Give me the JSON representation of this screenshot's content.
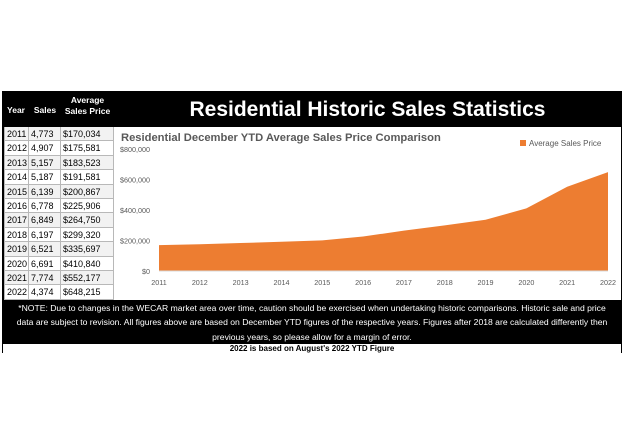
{
  "title": "Residential Historic Sales Statistics",
  "table": {
    "headers": {
      "year": "Year",
      "sales": "Sales",
      "price_line1": "Average",
      "price_line2": "Sales Price"
    },
    "rows": [
      {
        "year": "2011",
        "sales": "4,773",
        "price": "$170,034"
      },
      {
        "year": "2012",
        "sales": "4,907",
        "price": "$175,581"
      },
      {
        "year": "2013",
        "sales": "5,157",
        "price": "$183,523"
      },
      {
        "year": "2014",
        "sales": "5,187",
        "price": "$191,581"
      },
      {
        "year": "2015",
        "sales": "6,139",
        "price": "$200,867"
      },
      {
        "year": "2016",
        "sales": "6,778",
        "price": "$225,906"
      },
      {
        "year": "2017",
        "sales": "6,849",
        "price": "$264,750"
      },
      {
        "year": "2018",
        "sales": "6,197",
        "price": "$299,320"
      },
      {
        "year": "2019",
        "sales": "6,521",
        "price": "$335,697"
      },
      {
        "year": "2020",
        "sales": "6,691",
        "price": "$410,840"
      },
      {
        "year": "2021",
        "sales": "7,774",
        "price": "$552,177"
      },
      {
        "year": "2022",
        "sales": "4,374",
        "price": "$648,215"
      }
    ]
  },
  "chart_data": {
    "type": "area",
    "title": "Residential December YTD Average Sales Price Comparison",
    "categories": [
      "2011",
      "2012",
      "2013",
      "2014",
      "2015",
      "2016",
      "2017",
      "2018",
      "2019",
      "2020",
      "2021",
      "2022"
    ],
    "series": [
      {
        "name": "Average Sales Price",
        "values": [
          170034,
          175581,
          183523,
          191581,
          200867,
          225906,
          264750,
          299320,
          335697,
          410840,
          552177,
          648215
        ]
      }
    ],
    "y_ticks": [
      "$0",
      "$200,000",
      "$400,000",
      "$600,000",
      "$800,000"
    ],
    "ylim": [
      0,
      800000
    ],
    "grid": false,
    "legend": "top-right",
    "color": "#ed7d31"
  },
  "note": "*NOTE: Due to changes in the WECAR market area over time, caution should be exercised when undertaking historic comparisons. Historic sale and price data are subject to revision. All figures above are based on December YTD figures of the respective years. Figures after 2018 are calculated differently then previous years, so please allow for a margin of error.",
  "footer": "2022 is based on August's 2022 YTD Figure"
}
